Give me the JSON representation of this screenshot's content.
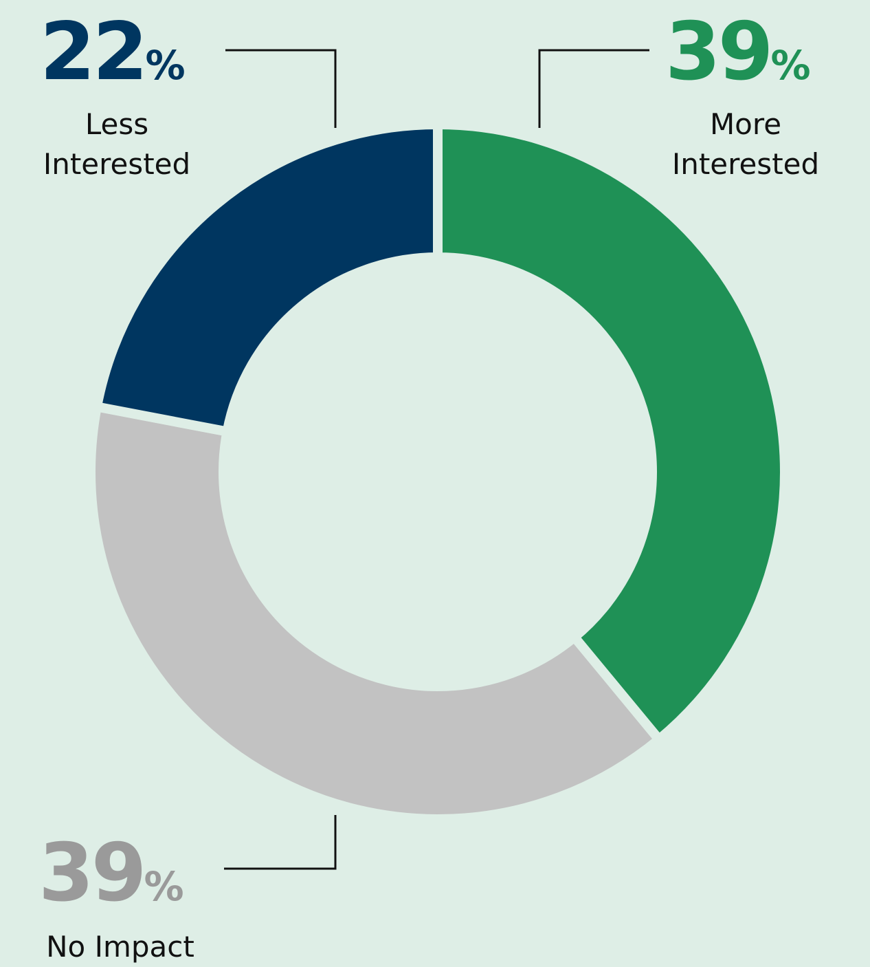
{
  "chart_data": {
    "type": "donut",
    "categories": [
      "More Interested",
      "No Impact",
      "Less Interested"
    ],
    "values": [
      39,
      39,
      22
    ],
    "unit": "%",
    "colors": [
      "#1f9156",
      "#c2c2c2",
      "#003660"
    ]
  }
}
